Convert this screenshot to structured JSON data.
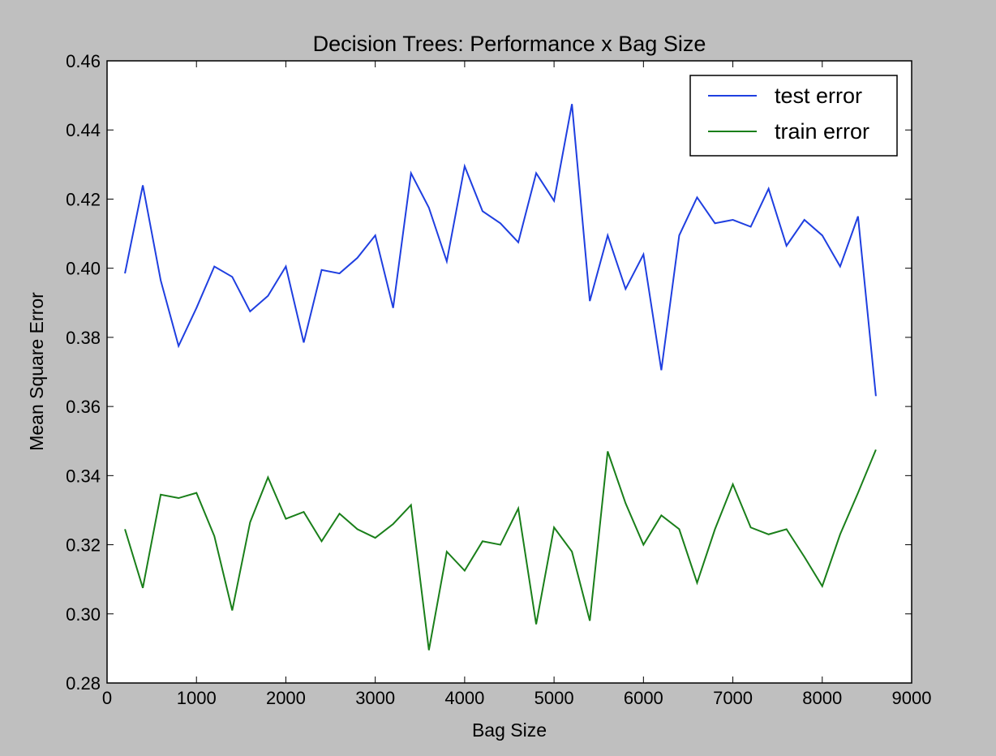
{
  "chart_data": {
    "type": "line",
    "title": "Decision Trees: Performance x Bag Size",
    "xlabel": "Bag Size",
    "ylabel": "Mean Square Error",
    "xlim": [
      0,
      9000
    ],
    "ylim": [
      0.28,
      0.46
    ],
    "xticks": [
      "0",
      "1000",
      "2000",
      "3000",
      "4000",
      "5000",
      "6000",
      "7000",
      "8000",
      "9000"
    ],
    "yticks": [
      "0.28",
      "0.30",
      "0.32",
      "0.34",
      "0.36",
      "0.38",
      "0.40",
      "0.42",
      "0.44",
      "0.46"
    ],
    "legend_position": "top-right",
    "grid": false,
    "x": [
      200,
      400,
      600,
      800,
      1000,
      1200,
      1400,
      1600,
      1800,
      2000,
      2200,
      2400,
      2600,
      2800,
      3000,
      3200,
      3400,
      3600,
      3800,
      4000,
      4200,
      4400,
      4600,
      4800,
      5000,
      5200,
      5400,
      5600,
      5800,
      6000,
      6200,
      6400,
      6600,
      6800,
      7000,
      7200,
      7400,
      7600,
      7800,
      8000,
      8200,
      8400,
      8600
    ],
    "series": [
      {
        "name": "test error",
        "color": "#1f3fe0",
        "values": [
          0.3985,
          0.424,
          0.3965,
          0.3775,
          0.3885,
          0.4005,
          0.3975,
          0.3875,
          0.392,
          0.4005,
          0.3785,
          0.3995,
          0.3985,
          0.403,
          0.4095,
          0.3885,
          0.4275,
          0.4175,
          0.402,
          0.4295,
          0.4165,
          0.413,
          0.4075,
          0.4275,
          0.4195,
          0.4475,
          0.3905,
          0.4095,
          0.394,
          0.404,
          0.3705,
          0.4095,
          0.4205,
          0.413,
          0.414,
          0.412,
          0.423,
          0.4065,
          0.414,
          0.4095,
          0.4005,
          0.415,
          0.363
        ]
      },
      {
        "name": "train error",
        "color": "#1a7f1a",
        "values": [
          0.3245,
          0.3075,
          0.3345,
          0.3335,
          0.335,
          0.3225,
          0.301,
          0.3265,
          0.3395,
          0.3275,
          0.3295,
          0.321,
          0.329,
          0.3245,
          0.322,
          0.326,
          0.3315,
          0.2895,
          0.318,
          0.3125,
          0.321,
          0.32,
          0.3305,
          0.297,
          0.325,
          0.318,
          0.298,
          0.347,
          0.332,
          0.32,
          0.3285,
          0.3245,
          0.309,
          0.3245,
          0.3375,
          0.325,
          0.323,
          0.3245,
          0.3165,
          0.308,
          0.323,
          0.335,
          0.3475
        ]
      }
    ]
  }
}
